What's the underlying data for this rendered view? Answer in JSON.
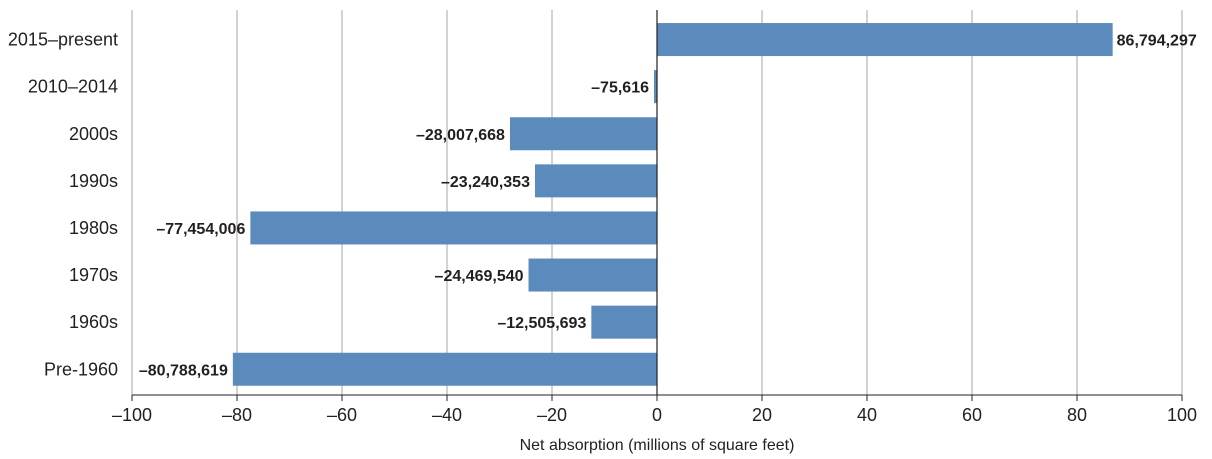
{
  "chart_data": {
    "type": "bar",
    "orientation": "horizontal",
    "title": "",
    "xlabel": "Net absorption (millions of square feet)",
    "ylabel": "",
    "xlim": [
      -100,
      100
    ],
    "x_ticks": [
      -100,
      -80,
      -60,
      -40,
      -20,
      0,
      20,
      40,
      60,
      80,
      100
    ],
    "x_tick_labels": [
      "–100",
      "–80",
      "–60",
      "–40",
      "–20",
      "0",
      "20",
      "40",
      "60",
      "80",
      "100"
    ],
    "grid": "vertical",
    "categories": [
      "2015–present",
      "2010–2014",
      "2000s",
      "1990s",
      "1980s",
      "1970s",
      "1960s",
      "Pre-1960"
    ],
    "values": [
      86794297,
      -75616,
      -28007668,
      -23240353,
      -77454006,
      -24469540,
      -12505693,
      -80788619
    ],
    "value_unit_divisor": 1000000,
    "data_labels": [
      "86,794,297",
      "–75,616",
      "–28,007,668",
      "–23,240,353",
      "–77,454,006",
      "–24,469,540",
      "–12,505,693",
      "–80,788,619"
    ],
    "bar_color": "#5b8bbd"
  },
  "colors": {
    "bar": "#5b8bbd",
    "grid": "#a6a6a6",
    "zero_line": "#231f20",
    "axis": "#231f20",
    "text": "#231f20"
  }
}
